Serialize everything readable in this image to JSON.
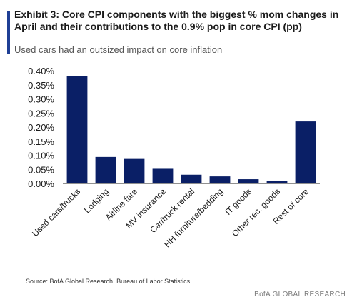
{
  "header": {
    "title": "Exhibit 3: Core CPI components with the biggest % mom changes in April and their contributions to the 0.9% pop in core CPI (pp)",
    "subtitle": "Used cars had an outsized impact on core inflation"
  },
  "footer": {
    "source": "Source:  BofA Global Research, Bureau of Labor Statistics",
    "brand": "BofA GLOBAL RESEARCH"
  },
  "colors": {
    "bar": "#0a1f66",
    "accent": "#1f3f95"
  },
  "chart_data": {
    "type": "bar",
    "categories": [
      "Used cars/trucks",
      "Lodging",
      "Airline fare",
      "MV insurance",
      "Car/truck rental",
      "HH furniture/bedding",
      "IT goods",
      "Other rec. goods",
      "Rest of core"
    ],
    "values": [
      0.38,
      0.094,
      0.087,
      0.052,
      0.031,
      0.025,
      0.015,
      0.008,
      0.22
    ],
    "ylim": [
      0,
      0.4
    ],
    "yticks": [
      0.0,
      0.05,
      0.1,
      0.15,
      0.2,
      0.25,
      0.3,
      0.35,
      0.4
    ],
    "ytick_labels": [
      "0.00%",
      "0.05%",
      "0.10%",
      "0.15%",
      "0.20%",
      "0.25%",
      "0.30%",
      "0.35%",
      "0.40%"
    ],
    "grid": false,
    "legend": "none",
    "xlabel": "",
    "ylabel": ""
  }
}
